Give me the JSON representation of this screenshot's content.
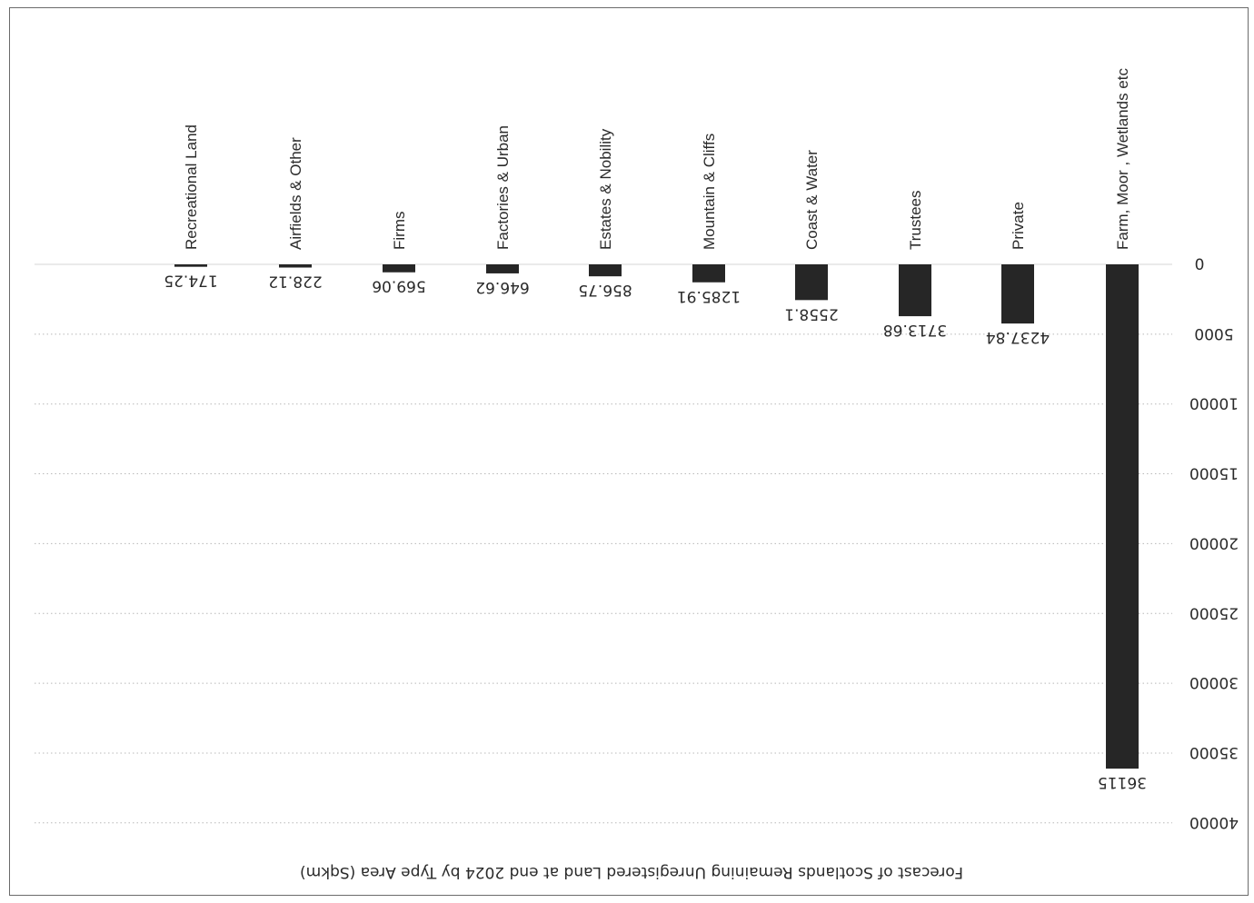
{
  "chart_data": {
    "type": "bar",
    "orientation": "rotated-180",
    "title": "Forecast of Scotlands Remaining Unregistered Land at end 2024 by Type Area (Sqkm)",
    "categories": [
      "Farm, Moor , Wetlands etc",
      "Private",
      "Trustees",
      "Coast & Water",
      "Mountain & Cliffs",
      "Estates & Nobility",
      "Factories & Urban",
      "Firms",
      "Airfields & Other",
      "Recreational Land"
    ],
    "values": [
      36115,
      4237.84,
      3713.68,
      2558.1,
      1285.91,
      856.75,
      646.62,
      569.06,
      228.12,
      174.25
    ],
    "value_labels": [
      "36115",
      "4237.84",
      "3713.68",
      "2558.1",
      "1285.91",
      "856.75",
      "646.62",
      "569.06",
      "228.12",
      "174.25"
    ],
    "ylim": [
      0,
      40000
    ],
    "yticks": [
      "0",
      "5000",
      "10000",
      "15000",
      "20000",
      "25000",
      "30000",
      "35000",
      "40000"
    ],
    "ytick_values": [
      0,
      5000,
      10000,
      15000,
      20000,
      25000,
      30000,
      35000,
      40000
    ],
    "grid": true,
    "legend": "none",
    "bar_color": "#262626",
    "grid_color": "#b8b8b8"
  }
}
